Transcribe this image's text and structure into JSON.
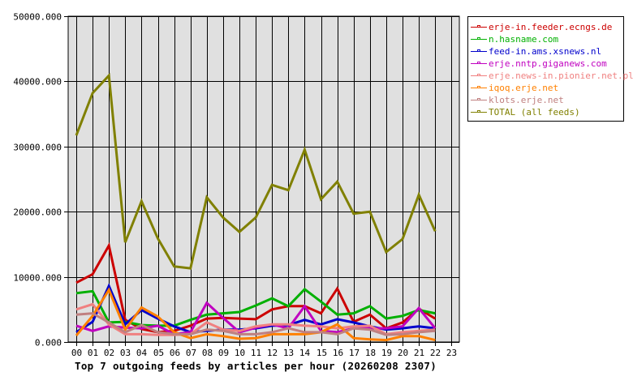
{
  "chart_data": {
    "type": "line",
    "title": "Top 7 outgoing feeds by articles per hour (20260208 2307)",
    "xlabel": "",
    "ylabel": "",
    "ylim": [
      0,
      50000
    ],
    "yticks": [
      "0.000",
      "10000.000",
      "20000.000",
      "30000.000",
      "40000.000",
      "50000.000"
    ],
    "ytick_values": [
      0,
      10000,
      20000,
      30000,
      40000,
      50000
    ],
    "categories": [
      "00",
      "01",
      "02",
      "03",
      "04",
      "05",
      "06",
      "07",
      "08",
      "09",
      "10",
      "11",
      "12",
      "13",
      "14",
      "15",
      "16",
      "17",
      "18",
      "19",
      "20",
      "21",
      "22",
      "23"
    ],
    "grid": true,
    "legend_position": "right",
    "series": [
      {
        "name": "erje-in.feeder.ecngs.de",
        "color": "#cc0000",
        "values": [
          9100,
          10400,
          14800,
          3400,
          2000,
          1500,
          1700,
          2500,
          3600,
          3700,
          3600,
          3500,
          5000,
          5500,
          5500,
          4400,
          8200,
          3100,
          4200,
          2100,
          3000,
          5100,
          3600
        ]
      },
      {
        "name": "n.hasname.com",
        "color": "#00b000",
        "values": [
          7500,
          7800,
          3000,
          3100,
          2600,
          2500,
          2500,
          3400,
          4200,
          4400,
          4600,
          5600,
          6700,
          5500,
          8100,
          6200,
          4200,
          4400,
          5500,
          3600,
          4000,
          4900,
          4400
        ]
      },
      {
        "name": "feed-in.ams.xsnews.nl",
        "color": "#0000cc",
        "values": [
          1500,
          3100,
          8600,
          2700,
          4900,
          3600,
          2400,
          1500,
          1700,
          1900,
          1900,
          2100,
          2500,
          2600,
          3400,
          2700,
          3500,
          3000,
          2400,
          1900,
          2100,
          2400,
          2100
        ]
      },
      {
        "name": "erje.nntp.giganews.com",
        "color": "#c000c0",
        "values": [
          2500,
          1700,
          2400,
          2200,
          2100,
          2500,
          1200,
          1500,
          6000,
          3700,
          1500,
          2200,
          2700,
          2100,
          5500,
          1700,
          1500,
          2100,
          2100,
          2100,
          2400,
          5200,
          2100
        ]
      },
      {
        "name": "erje.news-in.pionier.net.pl",
        "color": "#f08080",
        "values": [
          5000,
          5800,
          2700,
          1200,
          1200,
          1100,
          1100,
          1200,
          3000,
          1900,
          1700,
          2400,
          2700,
          2700,
          2500,
          2400,
          2100,
          2400,
          2500,
          1200,
          1500,
          1700,
          1900
        ]
      },
      {
        "name": "iqoq.erje.net",
        "color": "#ff8000",
        "values": [
          1000,
          4000,
          8000,
          1900,
          5300,
          3900,
          1500,
          600,
          1200,
          900,
          500,
          600,
          1200,
          1200,
          1200,
          1500,
          2700,
          600,
          400,
          300,
          900,
          900,
          300
        ]
      },
      {
        "name": "klots.erje.net",
        "color": "#c08080",
        "values": [
          4200,
          4400,
          3000,
          1500,
          2600,
          1500,
          1200,
          1200,
          1900,
          1700,
          1200,
          1200,
          1500,
          2100,
          1500,
          1500,
          1200,
          2100,
          1900,
          1100,
          1200,
          1500,
          1700
        ]
      },
      {
        "name": "TOTAL (all feeds)",
        "color": "#808000",
        "values": [
          31700,
          38200,
          40900,
          15300,
          21600,
          15900,
          11600,
          11300,
          22200,
          19100,
          16900,
          19100,
          24100,
          23300,
          29500,
          21900,
          24600,
          19700,
          20000,
          13800,
          15800,
          22600,
          17000
        ]
      }
    ]
  },
  "legend": {
    "items": [
      {
        "label": "erje-in.feeder.ecngs.de",
        "color": "#cc0000"
      },
      {
        "label": "n.hasname.com",
        "color": "#00b000"
      },
      {
        "label": "feed-in.ams.xsnews.nl",
        "color": "#0000cc"
      },
      {
        "label": "erje.nntp.giganews.com",
        "color": "#c000c0"
      },
      {
        "label": "erje.news-in.pionier.net.pl",
        "color": "#f08080"
      },
      {
        "label": "iqoq.erje.net",
        "color": "#ff8000"
      },
      {
        "label": "klots.erje.net",
        "color": "#c08080"
      },
      {
        "label": "TOTAL (all feeds)",
        "color": "#808000"
      }
    ]
  },
  "colors": {
    "plot_background": "#e0e0e0",
    "grid": "#000000",
    "page_background": "#ffffff"
  }
}
